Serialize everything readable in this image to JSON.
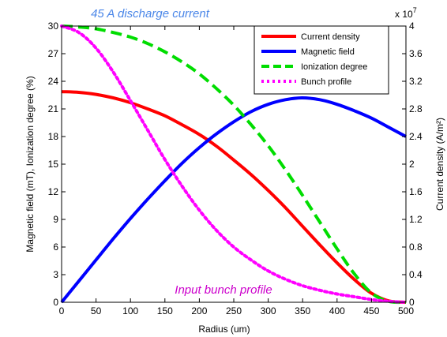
{
  "chart_data": {
    "type": "line",
    "title": "45 A discharge current",
    "xlabel": "Radius (um)",
    "ylabel_left": "Magnetic field (mT), Ionization degree (%)",
    "ylabel_right": "Current density (A/m²)",
    "right_axis_exponent": "x 10^7",
    "exponent_base": "x 10",
    "exponent_power": "7",
    "annotation": "Input bunch profile",
    "xlim": [
      0,
      500
    ],
    "ylim_left": [
      0,
      30
    ],
    "ylim_right": [
      0,
      4
    ],
    "x_ticks": [
      0,
      50,
      100,
      150,
      200,
      250,
      300,
      350,
      400,
      450,
      500
    ],
    "y_ticks_left": [
      0,
      3,
      6,
      9,
      12,
      15,
      18,
      21,
      24,
      27,
      30
    ],
    "y_ticks_right": [
      "0",
      "0.4",
      "0.8",
      "1.2",
      "1.6",
      "2",
      "2.4",
      "2.8",
      "3.2",
      "3.6",
      "4"
    ],
    "grid": false,
    "legend_position": "top-right",
    "colors": {
      "current_density": "#ff0000",
      "magnetic_field": "#0000ff",
      "ionization_degree": "#00dd00",
      "bunch_profile": "#ff00ff",
      "title": "#4a86e8",
      "annotation": "#cc00cc"
    },
    "x": [
      0,
      25,
      50,
      75,
      100,
      125,
      150,
      175,
      200,
      225,
      250,
      275,
      300,
      325,
      350,
      375,
      400,
      425,
      450,
      475,
      500
    ],
    "series": [
      {
        "name": "Current density",
        "axis": "right",
        "style": "solid",
        "color": "#ff0000",
        "values": [
          3.05,
          3.04,
          3.01,
          2.96,
          2.89,
          2.8,
          2.7,
          2.57,
          2.43,
          2.26,
          2.06,
          1.85,
          1.62,
          1.37,
          1.1,
          0.83,
          0.57,
          0.33,
          0.13,
          0.02,
          0.0
        ]
      },
      {
        "name": "Magnetic field",
        "axis": "left",
        "style": "solid",
        "color": "#0000ff",
        "values": [
          0.0,
          2.3,
          4.6,
          6.9,
          9.1,
          11.2,
          13.2,
          15.1,
          16.8,
          18.3,
          19.6,
          20.7,
          21.5,
          22.0,
          22.2,
          22.0,
          21.5,
          20.8,
          20.0,
          19.0,
          18.0
        ]
      },
      {
        "name": "Ionization degree",
        "axis": "left",
        "style": "dashed",
        "color": "#00dd00",
        "values": [
          30.0,
          29.9,
          29.7,
          29.3,
          28.8,
          28.1,
          27.2,
          26.1,
          24.8,
          23.2,
          21.4,
          19.3,
          17.0,
          14.4,
          11.6,
          8.7,
          5.8,
          3.1,
          1.0,
          0.1,
          0.0
        ]
      },
      {
        "name": "Bunch profile",
        "axis": "left",
        "style": "dotted",
        "color": "#ff00ff",
        "values": [
          30.0,
          29.3,
          27.6,
          25.0,
          21.9,
          18.7,
          15.5,
          12.6,
          10.0,
          7.8,
          6.0,
          4.6,
          3.4,
          2.5,
          1.8,
          1.3,
          0.9,
          0.6,
          0.3,
          0.1,
          0.0
        ]
      }
    ]
  }
}
